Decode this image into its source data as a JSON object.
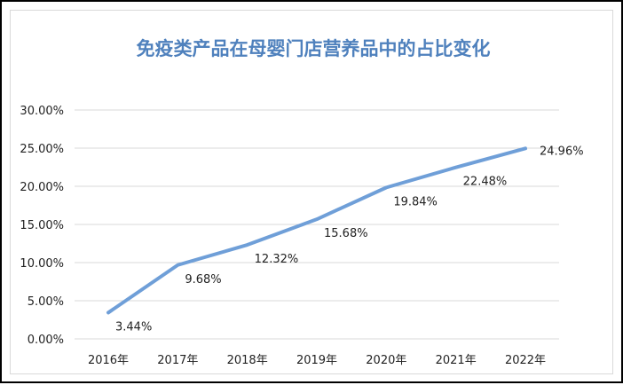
{
  "chart_data": {
    "type": "line",
    "title": "免疫类产品在母婴门店营养品中的占比变化",
    "categories": [
      "2016年",
      "2017年",
      "2018年",
      "2019年",
      "2020年",
      "2021年",
      "2022年"
    ],
    "values": [
      3.44,
      9.68,
      12.32,
      15.68,
      19.84,
      22.48,
      24.96
    ],
    "data_labels": [
      "3.44%",
      "9.68%",
      "12.32%",
      "15.68%",
      "19.84%",
      "22.48%",
      "24.96%"
    ],
    "y_ticks": [
      "0.00%",
      "5.00%",
      "10.00%",
      "15.00%",
      "20.00%",
      "25.00%",
      "30.00%"
    ],
    "ylim": [
      0,
      30
    ],
    "grid": true,
    "legend": "none",
    "xlabel": "",
    "ylabel": "",
    "colors": {
      "line": "#6f9fd8",
      "title": "#4f81bd",
      "grid": "#d9d9d9",
      "text": "#222222"
    }
  }
}
